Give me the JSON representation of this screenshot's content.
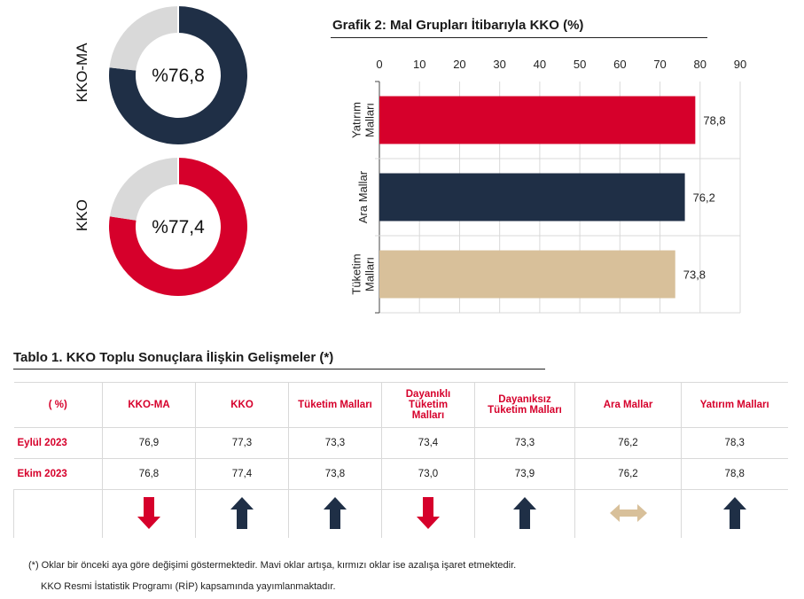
{
  "colors": {
    "navy": "#1f2f46",
    "red": "#d6002b",
    "grey": "#d9d9d9",
    "beige": "#d8c09a"
  },
  "donuts": [
    {
      "label": "KKO-MA",
      "value_text": "%76,8",
      "value": 76.8,
      "color": "#1f2f46"
    },
    {
      "label": "KKO",
      "value_text": "%77,4",
      "value": 77.4,
      "color": "#d6002b"
    }
  ],
  "chart_data": {
    "type": "bar",
    "orientation": "horizontal",
    "title": "Grafik 2: Mal Grupları İtibarıyla KKO (%)",
    "categories": [
      "Yatırım Malları",
      "Ara Mallar",
      "Tüketim Malları"
    ],
    "category_lines": [
      [
        "Yatırım",
        "Malları"
      ],
      [
        "Ara Mallar"
      ],
      [
        "Tüketim",
        "Malları"
      ]
    ],
    "values": [
      78.8,
      76.2,
      73.8
    ],
    "value_labels": [
      "78,8",
      "76,2",
      "73,8"
    ],
    "bar_colors": [
      "#d6002b",
      "#1f2f46",
      "#d8c09a"
    ],
    "xlim": [
      0,
      90
    ],
    "ticks": [
      "0",
      "10",
      "20",
      "30",
      "40",
      "50",
      "60",
      "70",
      "80",
      "90"
    ],
    "xaxis_position": "top",
    "grid": true
  },
  "table": {
    "title": "Tablo 1. KKO Toplu Sonuçlara İlişkin Gelişmeler (*)",
    "headers": [
      "( %)",
      "KKO-MA",
      "KKO",
      "Tüketim Malları",
      "Dayanıklı Tüketim Malları",
      "Dayanıksız Tüketim Malları",
      "Ara Mallar",
      "Yatırım Malları"
    ],
    "rows": [
      {
        "label": "Eylül 2023",
        "values": [
          "76,9",
          "77,3",
          "73,3",
          "73,4",
          "73,3",
          "76,2",
          "78,3"
        ]
      },
      {
        "label": "Ekim 2023",
        "values": [
          "76,8",
          "77,4",
          "73,8",
          "73,0",
          "73,9",
          "76,2",
          "78,8"
        ]
      }
    ],
    "arrows": [
      {
        "direction": "down",
        "icon": "down-arrow-icon",
        "color": "#d6002b"
      },
      {
        "direction": "up",
        "icon": "up-arrow-icon",
        "color": "#1f2f46"
      },
      {
        "direction": "up",
        "icon": "up-arrow-icon",
        "color": "#1f2f46"
      },
      {
        "direction": "down",
        "icon": "down-arrow-icon",
        "color": "#d6002b"
      },
      {
        "direction": "up",
        "icon": "up-arrow-icon",
        "color": "#1f2f46"
      },
      {
        "direction": "flat",
        "icon": "left-right-arrow-icon",
        "color": "#d8c09a"
      },
      {
        "direction": "up",
        "icon": "up-arrow-icon",
        "color": "#1f2f46"
      }
    ]
  },
  "footnotes": [
    "(*) Oklar bir önceki aya göre değişimi göstermektedir. Mavi oklar artışa, kırmızı oklar ise azalışa işaret etmektedir.",
    "KKO Resmi İstatistik Programı (RİP) kapsamında yayımlanmaktadır."
  ]
}
